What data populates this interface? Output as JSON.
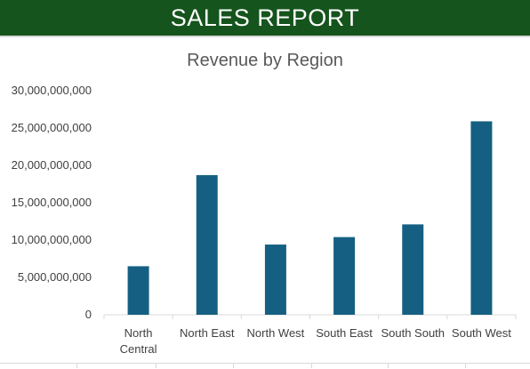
{
  "header": {
    "title": "SALES REPORT"
  },
  "chart_data": {
    "type": "bar",
    "title": "Revenue by Region",
    "xlabel": "",
    "ylabel": "",
    "categories": [
      [
        "North",
        "Central"
      ],
      [
        "North East"
      ],
      [
        "North West"
      ],
      [
        "South East"
      ],
      [
        "South South"
      ],
      [
        "South West"
      ]
    ],
    "values": [
      6500000000,
      18700000000,
      9400000000,
      10400000000,
      12100000000,
      25900000000
    ],
    "ylim": [
      0,
      30000000000
    ],
    "yticks": [
      0,
      5000000000,
      10000000000,
      15000000000,
      20000000000,
      25000000000,
      30000000000
    ],
    "ytick_labels": [
      "0",
      "5,000,000,000",
      "10,000,000,000",
      "15,000,000,000",
      "20,000,000,000",
      "25,000,000,000",
      "30,000,000,000"
    ],
    "grid": false,
    "legend": "none",
    "bar_color": "#156082",
    "axis_color": "#d9d9d9",
    "label_color": "#404040"
  }
}
